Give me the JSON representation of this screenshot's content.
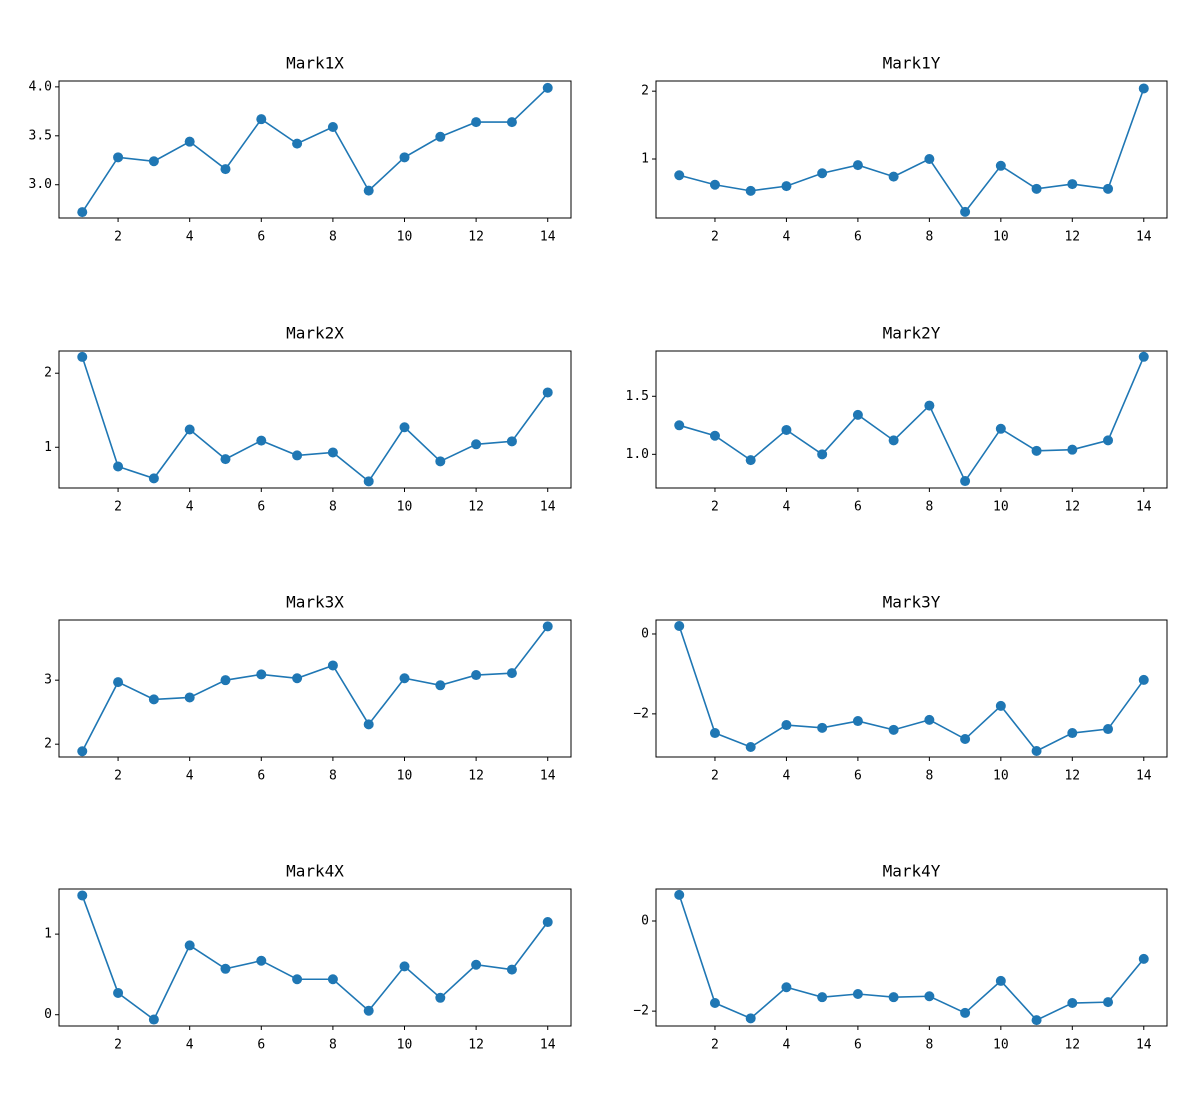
{
  "chart_data": [
    {
      "type": "line",
      "title": "Mark1X",
      "color": "#1f77b4",
      "x": [
        1,
        2,
        3,
        4,
        5,
        6,
        7,
        8,
        9,
        10,
        11,
        12,
        13,
        14
      ],
      "values": [
        2.72,
        3.28,
        3.24,
        3.44,
        3.16,
        3.67,
        3.42,
        3.59,
        2.94,
        3.28,
        3.49,
        3.64,
        3.64,
        3.99
      ],
      "xlim": [
        0.35,
        14.65
      ],
      "ylim": [
        2.66,
        4.06
      ],
      "xticks": [
        2,
        4,
        6,
        8,
        10,
        12,
        14
      ],
      "yticks": [
        {
          "value": 3,
          "label": "3.0"
        },
        3.5,
        {
          "value": 4,
          "label": "4.0"
        }
      ]
    },
    {
      "type": "line",
      "title": "Mark1Y",
      "color": "#1f77b4",
      "x": [
        1,
        2,
        3,
        4,
        5,
        6,
        7,
        8,
        9,
        10,
        11,
        12,
        13,
        14
      ],
      "values": [
        0.76,
        0.62,
        0.53,
        0.6,
        0.79,
        0.91,
        0.74,
        1.0,
        0.22,
        0.9,
        0.56,
        0.63,
        0.56,
        2.04
      ],
      "xlim": [
        0.35,
        14.65
      ],
      "ylim": [
        0.13,
        2.15
      ],
      "xticks": [
        2,
        4,
        6,
        8,
        10,
        12,
        14
      ],
      "yticks": [
        1,
        2
      ]
    },
    {
      "type": "line",
      "title": "Mark2X",
      "color": "#1f77b4",
      "x": [
        1,
        2,
        3,
        4,
        5,
        6,
        7,
        8,
        9,
        10,
        11,
        12,
        13,
        14
      ],
      "values": [
        2.22,
        0.74,
        0.58,
        1.24,
        0.84,
        1.09,
        0.89,
        0.93,
        0.54,
        1.27,
        0.81,
        1.04,
        1.08,
        1.74
      ],
      "xlim": [
        0.35,
        14.65
      ],
      "ylim": [
        0.45,
        2.3
      ],
      "xticks": [
        2,
        4,
        6,
        8,
        10,
        12,
        14
      ],
      "yticks": [
        1,
        2
      ]
    },
    {
      "type": "line",
      "title": "Mark2Y",
      "color": "#1f77b4",
      "x": [
        1,
        2,
        3,
        4,
        5,
        6,
        7,
        8,
        9,
        10,
        11,
        12,
        13,
        14
      ],
      "values": [
        1.25,
        1.16,
        0.95,
        1.21,
        1.0,
        1.34,
        1.12,
        1.42,
        0.77,
        1.22,
        1.03,
        1.04,
        1.12,
        1.84
      ],
      "xlim": [
        0.35,
        14.65
      ],
      "ylim": [
        0.71,
        1.89
      ],
      "xticks": [
        2,
        4,
        6,
        8,
        10,
        12,
        14
      ],
      "yticks": [
        {
          "value": 1,
          "label": "1.0"
        },
        1.5
      ]
    },
    {
      "type": "line",
      "title": "Mark3X",
      "color": "#1f77b4",
      "x": [
        1,
        2,
        3,
        4,
        5,
        6,
        7,
        8,
        9,
        10,
        11,
        12,
        13,
        14
      ],
      "values": [
        1.89,
        2.97,
        2.7,
        2.73,
        3.0,
        3.09,
        3.03,
        3.23,
        2.31,
        3.03,
        2.92,
        3.08,
        3.11,
        3.84
      ],
      "xlim": [
        0.35,
        14.65
      ],
      "ylim": [
        1.8,
        3.94
      ],
      "xticks": [
        2,
        4,
        6,
        8,
        10,
        12,
        14
      ],
      "yticks": [
        2,
        3
      ]
    },
    {
      "type": "line",
      "title": "Mark3Y",
      "color": "#1f77b4",
      "x": [
        1,
        2,
        3,
        4,
        5,
        6,
        7,
        8,
        9,
        10,
        11,
        12,
        13,
        14
      ],
      "values": [
        0.2,
        -2.48,
        -2.83,
        -2.28,
        -2.35,
        -2.18,
        -2.4,
        -2.15,
        -2.63,
        -1.8,
        -2.93,
        -2.48,
        -2.38,
        -1.15
      ],
      "xlim": [
        0.35,
        14.65
      ],
      "ylim": [
        -3.08,
        0.35
      ],
      "xticks": [
        2,
        4,
        6,
        8,
        10,
        12,
        14
      ],
      "yticks": [
        {
          "value": -2,
          "label": "−2"
        },
        0
      ]
    },
    {
      "type": "line",
      "title": "Mark4X",
      "color": "#1f77b4",
      "x": [
        1,
        2,
        3,
        4,
        5,
        6,
        7,
        8,
        9,
        10,
        11,
        12,
        13,
        14
      ],
      "values": [
        1.48,
        0.27,
        -0.06,
        0.86,
        0.57,
        0.67,
        0.44,
        0.44,
        0.05,
        0.6,
        0.21,
        0.62,
        0.56,
        1.15
      ],
      "xlim": [
        0.35,
        14.65
      ],
      "ylim": [
        -0.14,
        1.56
      ],
      "xticks": [
        2,
        4,
        6,
        8,
        10,
        12,
        14
      ],
      "yticks": [
        0,
        1
      ]
    },
    {
      "type": "line",
      "title": "Mark4Y",
      "color": "#1f77b4",
      "x": [
        1,
        2,
        3,
        4,
        5,
        6,
        7,
        8,
        9,
        10,
        11,
        12,
        13,
        14
      ],
      "values": [
        0.58,
        -1.82,
        -2.16,
        -1.47,
        -1.69,
        -1.62,
        -1.69,
        -1.67,
        -2.04,
        -1.33,
        -2.2,
        -1.82,
        -1.8,
        -0.84
      ],
      "xlim": [
        0.35,
        14.65
      ],
      "ylim": [
        -2.33,
        0.71
      ],
      "xticks": [
        2,
        4,
        6,
        8,
        10,
        12,
        14
      ],
      "yticks": [
        {
          "value": -2,
          "label": "−2"
        },
        0
      ]
    }
  ]
}
